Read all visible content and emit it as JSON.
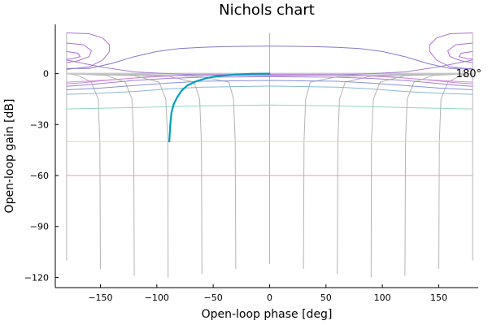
{
  "chart_data": {
    "type": "line",
    "title": "Nichols chart",
    "xlabel": "Open-loop phase [deg]",
    "ylabel": "Open-loop gain [dB]",
    "xlim": [
      -190,
      185
    ],
    "ylim": [
      -126,
      29
    ],
    "x_ticks": [
      -150,
      -100,
      -50,
      0,
      50,
      100,
      150
    ],
    "x_tick_labels": [
      "−150",
      "−100",
      "−50",
      "0",
      "50",
      "100",
      "150"
    ],
    "y_ticks": [
      0,
      -30,
      -60,
      -90,
      -120
    ],
    "y_tick_labels": [
      "0",
      "−30",
      "−60",
      "−90",
      "−120"
    ],
    "grid": false,
    "annotation": "180°",
    "center_line_color": "#c8c8c8",
    "gain_contours": [
      {
        "color": "#e0a0a0",
        "points": [
          [
            -180,
            -60
          ],
          [
            180,
            -60
          ]
        ]
      },
      {
        "color": "#e8d8a0",
        "points": [
          [
            -180,
            -40
          ],
          [
            180,
            -40
          ]
        ]
      },
      {
        "color": "#90d8c0",
        "points": [
          [
            -180,
            -20.8
          ],
          [
            -120,
            -20
          ],
          [
            -60,
            -19
          ],
          [
            0,
            -18.5
          ],
          [
            60,
            -19
          ],
          [
            120,
            -20
          ],
          [
            180,
            -20.8
          ]
        ]
      },
      {
        "color": "#88b8d8",
        "points": [
          [
            -180,
            -12.2
          ],
          [
            -150,
            -11.5
          ],
          [
            -120,
            -10.5
          ],
          [
            -90,
            -9
          ],
          [
            -60,
            -8
          ],
          [
            0,
            -7.3
          ],
          [
            60,
            -8
          ],
          [
            90,
            -9
          ],
          [
            120,
            -10.5
          ],
          [
            150,
            -11.5
          ],
          [
            180,
            -12.2
          ]
        ]
      },
      {
        "color": "#8890d8",
        "points": [
          [
            -180,
            -9.5
          ],
          [
            -150,
            -8.5
          ],
          [
            -120,
            -7
          ],
          [
            -90,
            -5.6
          ],
          [
            -60,
            -4.5
          ],
          [
            0,
            -4
          ],
          [
            60,
            -4.5
          ],
          [
            90,
            -5.6
          ],
          [
            120,
            -7
          ],
          [
            150,
            -8.5
          ],
          [
            180,
            -9.5
          ]
        ]
      },
      {
        "color": "#a080d8",
        "points": [
          [
            -180,
            -7.5
          ],
          [
            -160,
            -6.5
          ],
          [
            -140,
            -5.2
          ],
          [
            -120,
            -4
          ],
          [
            -90,
            -2.8
          ],
          [
            -60,
            -2.1
          ],
          [
            0,
            -1.8
          ],
          [
            60,
            -2.1
          ],
          [
            90,
            -2.8
          ],
          [
            120,
            -4
          ],
          [
            140,
            -5.2
          ],
          [
            160,
            -6.5
          ],
          [
            180,
            -7.5
          ]
        ]
      },
      {
        "color": "#c088d8",
        "points": [
          [
            -180,
            -6
          ],
          [
            -165,
            -5.3
          ],
          [
            -150,
            -4.3
          ],
          [
            -130,
            -3.2
          ],
          [
            -110,
            -2
          ],
          [
            -90,
            -1.2
          ],
          [
            -60,
            -0.6
          ],
          [
            0,
            -0.4
          ],
          [
            60,
            -0.6
          ],
          [
            90,
            -1.2
          ],
          [
            110,
            -2
          ],
          [
            130,
            -3.2
          ],
          [
            150,
            -4.3
          ],
          [
            165,
            -5.3
          ],
          [
            180,
            -6
          ]
        ]
      },
      {
        "color": "#d890d8",
        "points": [
          [
            -180,
            -5
          ],
          [
            -160,
            -4.4
          ],
          [
            -140,
            -3.6
          ],
          [
            -120,
            -2.6
          ],
          [
            -100,
            -1.8
          ],
          [
            -80,
            -1.2
          ],
          [
            -60,
            -0.9
          ],
          [
            0,
            -0.8
          ],
          [
            60,
            -0.9
          ],
          [
            80,
            -1.2
          ],
          [
            100,
            -1.8
          ],
          [
            120,
            -2.6
          ],
          [
            140,
            -3.6
          ],
          [
            160,
            -4.4
          ],
          [
            180,
            -5
          ]
        ]
      },
      {
        "color": "#b070d0",
        "points": [
          [
            -180,
            24
          ],
          [
            -160,
            23.5
          ],
          [
            -148,
            21
          ],
          [
            -142,
            17
          ],
          [
            -142,
            13
          ],
          [
            -148,
            8
          ],
          [
            -160,
            4
          ],
          [
            -180,
            2.5
          ]
        ]
      },
      {
        "color": "#b070d0",
        "points": [
          [
            180,
            24
          ],
          [
            160,
            23.5
          ],
          [
            148,
            21
          ],
          [
            142,
            17
          ],
          [
            142,
            13
          ],
          [
            148,
            8
          ],
          [
            160,
            4
          ],
          [
            180,
            2.5
          ]
        ]
      },
      {
        "color": "#b070d0",
        "points": [
          [
            -180,
            18
          ],
          [
            -165,
            17
          ],
          [
            -158,
            13.5
          ],
          [
            -160,
            10
          ],
          [
            -170,
            7.5
          ],
          [
            -180,
            6.5
          ]
        ]
      },
      {
        "color": "#b070d0",
        "points": [
          [
            180,
            18
          ],
          [
            165,
            17
          ],
          [
            158,
            13.5
          ],
          [
            160,
            10
          ],
          [
            170,
            7.5
          ],
          [
            180,
            6.5
          ]
        ]
      },
      {
        "color": "#b070d0",
        "points": [
          [
            -180,
            13
          ],
          [
            -170,
            12
          ],
          [
            -168,
            10
          ],
          [
            -175,
            8.8
          ],
          [
            -180,
            8.5
          ]
        ]
      },
      {
        "color": "#b070d0",
        "points": [
          [
            180,
            13
          ],
          [
            170,
            12
          ],
          [
            168,
            10
          ],
          [
            175,
            8.8
          ],
          [
            180,
            8.5
          ]
        ]
      },
      {
        "color": "#a080d8",
        "points": [
          [
            -180,
            8
          ],
          [
            -150,
            4
          ],
          [
            -120,
            1
          ],
          [
            -90,
            0
          ],
          [
            -60,
            -0.8
          ],
          [
            0,
            -1.2
          ],
          [
            60,
            -0.8
          ],
          [
            90,
            0
          ],
          [
            120,
            1
          ],
          [
            150,
            4
          ],
          [
            180,
            8
          ]
        ]
      },
      {
        "color": "#8a78c8",
        "points": [
          [
            -180,
            3
          ],
          [
            -160,
            3
          ],
          [
            -140,
            6
          ],
          [
            -120,
            10
          ],
          [
            -100,
            13
          ],
          [
            -80,
            14.8
          ],
          [
            -60,
            15.5
          ],
          [
            -40,
            15.9
          ],
          [
            -20,
            16.1
          ],
          [
            0,
            16.2
          ],
          [
            20,
            16.1
          ],
          [
            40,
            15.9
          ],
          [
            60,
            15.5
          ],
          [
            80,
            14.8
          ],
          [
            100,
            13
          ],
          [
            120,
            10
          ],
          [
            140,
            6
          ],
          [
            160,
            3
          ],
          [
            180,
            3
          ]
        ]
      }
    ],
    "phase_contours": [
      [
        [
          -180,
          -110
        ],
        [
          -180,
          24
        ]
      ],
      [
        [
          -150,
          -115
        ],
        [
          -150.5,
          -40
        ],
        [
          -152,
          -15
        ],
        [
          -158,
          -5
        ],
        [
          -170,
          -1
        ],
        [
          -180,
          0
        ]
      ],
      [
        [
          -120,
          -119
        ],
        [
          -120.5,
          -40
        ],
        [
          -122,
          -15
        ],
        [
          -128,
          -5
        ],
        [
          -145,
          -1
        ],
        [
          -180,
          0
        ]
      ],
      [
        [
          -90,
          -120
        ],
        [
          -90.3,
          -40
        ],
        [
          -92,
          -15
        ],
        [
          -98,
          -5
        ],
        [
          -120,
          -1.2
        ],
        [
          -180,
          0
        ]
      ],
      [
        [
          -60,
          -118
        ],
        [
          -60.5,
          -40
        ],
        [
          -62,
          -15
        ],
        [
          -67,
          -5
        ],
        [
          -90,
          -1.5
        ],
        [
          -140,
          -0.5
        ],
        [
          -180,
          0
        ]
      ],
      [
        [
          -30,
          -115
        ],
        [
          -30.5,
          -40
        ],
        [
          -32,
          -15
        ],
        [
          -36,
          -5
        ],
        [
          -60,
          -1.8
        ],
        [
          -110,
          -0.6
        ],
        [
          -180,
          0
        ]
      ],
      [
        [
          0,
          -112
        ],
        [
          0,
          24
        ]
      ],
      [
        [
          30,
          -115
        ],
        [
          30.5,
          -40
        ],
        [
          32,
          -15
        ],
        [
          36,
          -5
        ],
        [
          60,
          -1.8
        ],
        [
          110,
          -0.6
        ],
        [
          180,
          0
        ]
      ],
      [
        [
          60,
          -118
        ],
        [
          60.5,
          -40
        ],
        [
          62,
          -15
        ],
        [
          67,
          -5
        ],
        [
          90,
          -1.5
        ],
        [
          140,
          -0.5
        ],
        [
          180,
          0
        ]
      ],
      [
        [
          90,
          -120
        ],
        [
          90.3,
          -40
        ],
        [
          92,
          -15
        ],
        [
          98,
          -5
        ],
        [
          120,
          -1.2
        ],
        [
          180,
          0
        ]
      ],
      [
        [
          120,
          -119
        ],
        [
          120.5,
          -40
        ],
        [
          122,
          -15
        ],
        [
          128,
          -5
        ],
        [
          145,
          -1
        ],
        [
          180,
          0
        ]
      ],
      [
        [
          150,
          -115
        ],
        [
          150.5,
          -40
        ],
        [
          152,
          -15
        ],
        [
          158,
          -5
        ],
        [
          170,
          -1
        ],
        [
          180,
          0
        ]
      ],
      [
        [
          180,
          -110
        ],
        [
          180,
          24
        ]
      ]
    ],
    "series": [
      {
        "color": "#009ebf",
        "points": [
          [
            -89,
            -40
          ],
          [
            -88,
            -30
          ],
          [
            -87,
            -23
          ],
          [
            -85,
            -18
          ],
          [
            -82,
            -14
          ],
          [
            -78,
            -10
          ],
          [
            -73,
            -7
          ],
          [
            -65,
            -4.5
          ],
          [
            -55,
            -2.5
          ],
          [
            -45,
            -1.4
          ],
          [
            -30,
            -0.5
          ],
          [
            -15,
            -0.1
          ],
          [
            0,
            0
          ]
        ]
      }
    ]
  }
}
